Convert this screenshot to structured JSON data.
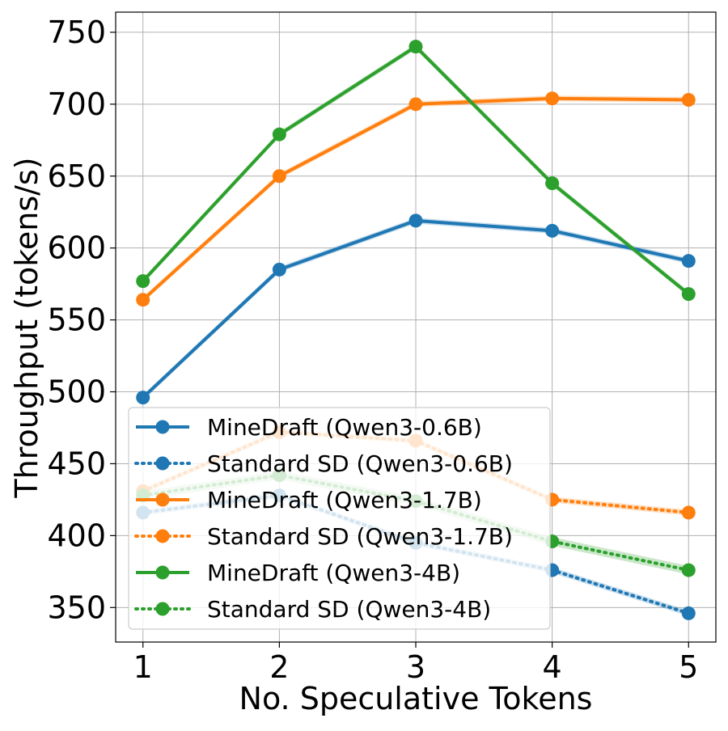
{
  "chart_data": {
    "type": "line",
    "title": "",
    "xlabel": "No. Speculative Tokens",
    "ylabel": "Throughput (tokens/s)",
    "x": [
      1,
      2,
      3,
      4,
      5
    ],
    "xlim": [
      0.8,
      5.2
    ],
    "ylim": [
      326,
      764
    ],
    "xticks": [
      "1",
      "2",
      "3",
      "4",
      "5"
    ],
    "yticks": [
      350,
      400,
      450,
      500,
      550,
      600,
      650,
      700,
      750
    ],
    "grid": true,
    "legend_position": "lower-left",
    "series": [
      {
        "name": "MineDraft (Qwen3-0.6B)",
        "color": "#1f77b4",
        "style": "solid",
        "values": [
          496,
          585,
          619,
          612,
          591
        ],
        "band": 2
      },
      {
        "name": "Standard SD (Qwen3-0.6B)",
        "color": "#1f77b4",
        "style": "dotted",
        "values": [
          416,
          428,
          395,
          376,
          346
        ],
        "band": 2
      },
      {
        "name": "MineDraft (Qwen3-1.7B)",
        "color": "#ff7f0e",
        "style": "solid",
        "values": [
          564,
          650,
          700,
          704,
          703
        ],
        "band": 2
      },
      {
        "name": "Standard SD (Qwen3-1.7B)",
        "color": "#ff7f0e",
        "style": "dotted",
        "values": [
          431,
          472,
          466,
          425,
          416
        ],
        "band": 2
      },
      {
        "name": "MineDraft (Qwen3-4B)",
        "color": "#2ca02c",
        "style": "solid",
        "values": [
          577,
          679,
          740,
          645,
          568
        ],
        "band": 2
      },
      {
        "name": "Standard SD (Qwen3-4B)",
        "color": "#2ca02c",
        "style": "dotted",
        "values": [
          428,
          442,
          424,
          396,
          376
        ],
        "band": 3
      }
    ]
  }
}
